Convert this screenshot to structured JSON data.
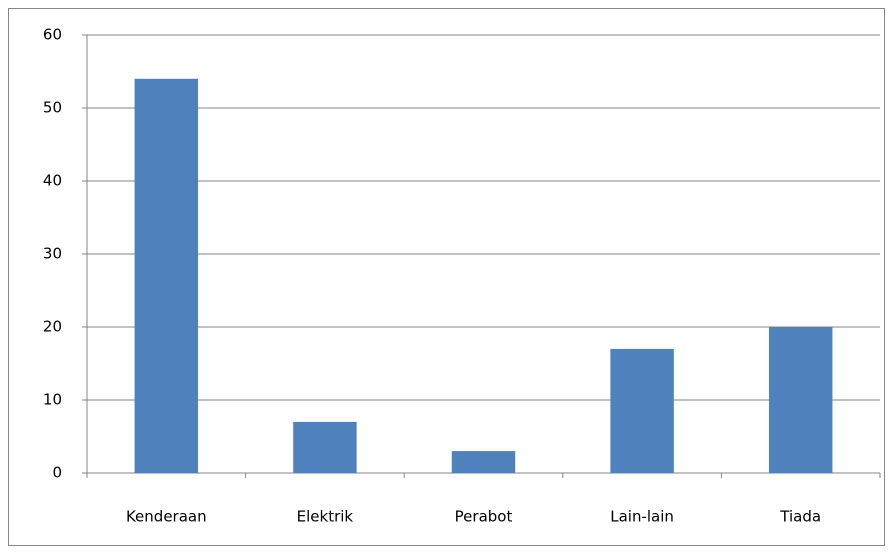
{
  "chart_data": {
    "type": "bar",
    "categories": [
      "Kenderaan",
      "Elektrik",
      "Perabot",
      "Lain-lain",
      "Tiada"
    ],
    "values": [
      54,
      7,
      3,
      17,
      20
    ],
    "color": "#4f81bd",
    "ylim": [
      0,
      60
    ],
    "yticks": [
      0,
      10,
      20,
      30,
      40,
      50,
      60
    ],
    "grid": true
  }
}
